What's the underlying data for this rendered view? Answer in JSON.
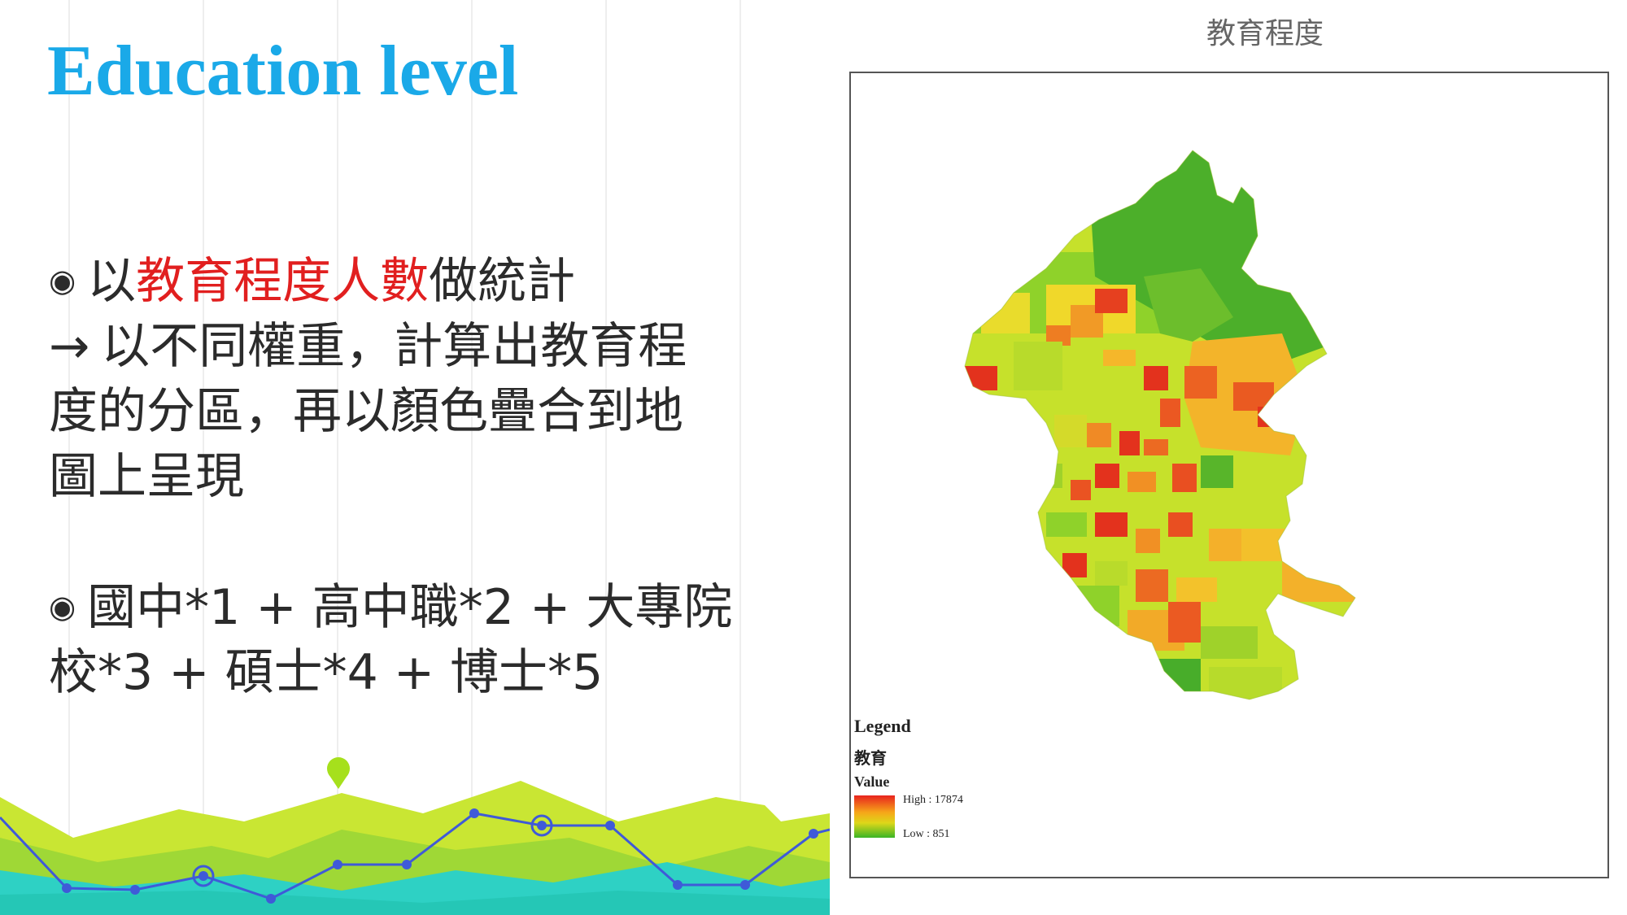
{
  "slide": {
    "title": "Education level"
  },
  "body": {
    "p1_bullet": "◉",
    "p1_pre": "以",
    "p1_highlight": "教育程度人數",
    "p1_post": "做統計",
    "p1_arrow": "→",
    "p1_line2": "以不同權重，計算出教育程",
    "p1_line3": "度的分區，再以顏色疊合到地",
    "p1_line4": "圖上呈現",
    "p2_bullet": "◉",
    "p2_line1": "國中*1 + 高中職*2 + 大專院",
    "p2_line2": "校*3 + 碩士*4 + 博士*5"
  },
  "map": {
    "title": "教育程度",
    "legend_title": "Legend",
    "legend_layer": "教育",
    "legend_field": "Value",
    "legend_high": "High : 17874",
    "legend_low": "Low : 851"
  },
  "colors": {
    "title": "#1aa9e8",
    "highlight": "#e11f1f",
    "map_high": "#e8231e",
    "map_mid": "#f6a619",
    "map_lowmid": "#ddd719",
    "map_low": "#3bb526"
  }
}
